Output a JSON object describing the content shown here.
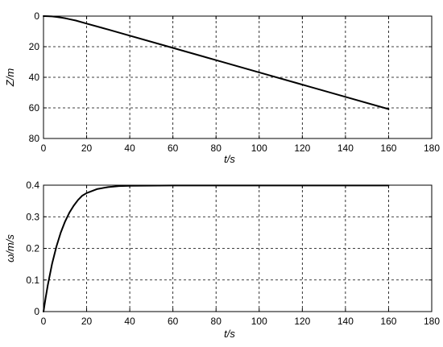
{
  "chart_data": [
    {
      "type": "line",
      "title": "",
      "xlabel": "t/s",
      "ylabel": "Z/m",
      "xlim": [
        0,
        180
      ],
      "ylim": [
        0,
        80
      ],
      "y_reversed": true,
      "grid": true,
      "xticks": [
        0,
        20,
        40,
        60,
        80,
        100,
        120,
        140,
        160,
        180
      ],
      "yticks": [
        0,
        20,
        40,
        60,
        80
      ],
      "series": [
        {
          "x": [
            0,
            2,
            4,
            6,
            8,
            10,
            12,
            15,
            20,
            30,
            40,
            60,
            80,
            100,
            120,
            140,
            160
          ],
          "y": [
            0,
            0.05,
            0.2,
            0.5,
            0.9,
            1.4,
            2.0,
            2.9,
            4.9,
            8.8,
            12.8,
            20.8,
            28.8,
            36.8,
            44.8,
            52.8,
            60.8
          ]
        }
      ]
    },
    {
      "type": "line",
      "title": "",
      "xlabel": "t/s",
      "ylabel": "ω/m/s",
      "xlim": [
        0,
        180
      ],
      "ylim": [
        0,
        0.4
      ],
      "y_reversed": false,
      "grid": true,
      "xticks": [
        0,
        20,
        40,
        60,
        80,
        100,
        120,
        140,
        160,
        180
      ],
      "yticks": [
        0,
        0.1,
        0.2,
        0.3,
        0.4
      ],
      "series": [
        {
          "x": [
            0,
            1,
            2,
            4,
            6,
            8,
            10,
            12,
            14,
            16,
            18,
            20,
            25,
            30,
            35,
            40,
            60,
            80,
            100,
            120,
            140,
            160
          ],
          "y": [
            0,
            0.044,
            0.084,
            0.152,
            0.206,
            0.25,
            0.285,
            0.313,
            0.335,
            0.353,
            0.367,
            0.375,
            0.388,
            0.394,
            0.397,
            0.398,
            0.399,
            0.399,
            0.399,
            0.399,
            0.399,
            0.399
          ]
        }
      ]
    }
  ]
}
